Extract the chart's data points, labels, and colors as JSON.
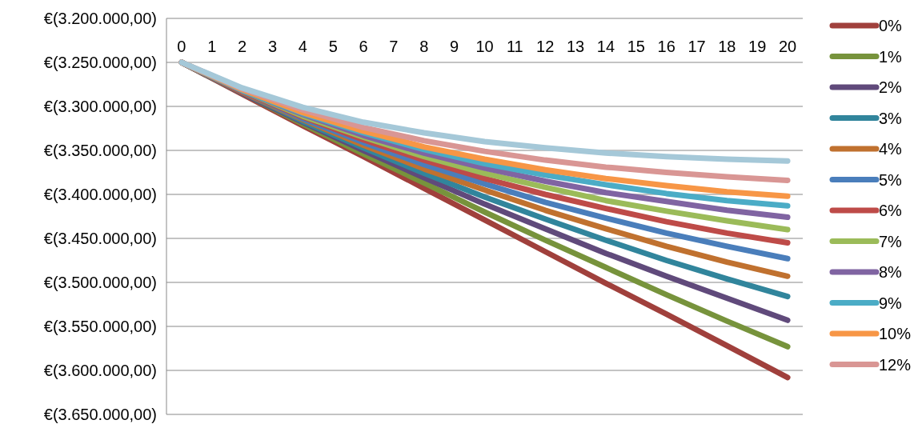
{
  "chart_data": {
    "type": "line",
    "x": [
      0,
      2,
      4,
      6,
      8,
      10,
      12,
      14,
      16,
      18,
      20
    ],
    "xlim": [
      -0.5,
      20.5
    ],
    "xticks": [
      0,
      1,
      2,
      3,
      4,
      5,
      6,
      7,
      8,
      9,
      10,
      11,
      12,
      13,
      14,
      15,
      16,
      17,
      18,
      19,
      20
    ],
    "ylim": [
      -3650000,
      -3200000
    ],
    "yticks": [
      {
        "value": -3200000,
        "label": "€(3.200.000,00)"
      },
      {
        "value": -3250000,
        "label": "€(3.250.000,00)"
      },
      {
        "value": -3300000,
        "label": "€(3.300.000,00)"
      },
      {
        "value": -3350000,
        "label": "€(3.350.000,00)"
      },
      {
        "value": -3400000,
        "label": "€(3.400.000,00)"
      },
      {
        "value": -3450000,
        "label": "€(3.450.000,00)"
      },
      {
        "value": -3500000,
        "label": "€(3.500.000,00)"
      },
      {
        "value": -3550000,
        "label": "€(3.550.000,00)"
      },
      {
        "value": -3600000,
        "label": "€(3.600.000,00)"
      },
      {
        "value": -3650000,
        "label": "€(3.650.000,00)"
      }
    ],
    "grid": "y",
    "legend": "right",
    "marker": "none",
    "line_style": "solid",
    "series": [
      {
        "name": "0%",
        "color": "#a0403c",
        "values": [
          -3250000,
          -3286000,
          -3322000,
          -3357000,
          -3393000,
          -3429000,
          -3465000,
          -3501000,
          -3536000,
          -3572000,
          -3608000
        ]
      },
      {
        "name": "1%",
        "color": "#77933c",
        "values": [
          -3250000,
          -3285000,
          -3320000,
          -3354000,
          -3387000,
          -3420000,
          -3452000,
          -3483000,
          -3514000,
          -3544000,
          -3573000
        ]
      },
      {
        "name": "2%",
        "color": "#604a7b",
        "values": [
          -3250000,
          -3285000,
          -3318000,
          -3350000,
          -3381000,
          -3411000,
          -3439000,
          -3467000,
          -3493000,
          -3518000,
          -3543000
        ]
      },
      {
        "name": "3%",
        "color": "#31859c",
        "values": [
          -3250000,
          -3284000,
          -3317000,
          -3347000,
          -3376000,
          -3403000,
          -3428000,
          -3452000,
          -3475000,
          -3496000,
          -3516000
        ]
      },
      {
        "name": "4%",
        "color": "#c0712f",
        "values": [
          -3250000,
          -3284000,
          -3315000,
          -3344000,
          -3371000,
          -3395000,
          -3418000,
          -3439000,
          -3459000,
          -3477000,
          -3493000
        ]
      },
      {
        "name": "5%",
        "color": "#4a7ebb",
        "values": [
          -3250000,
          -3283000,
          -3314000,
          -3341000,
          -3366000,
          -3388000,
          -3409000,
          -3427000,
          -3444000,
          -3459000,
          -3473000
        ]
      },
      {
        "name": "6%",
        "color": "#be4b48",
        "values": [
          -3250000,
          -3283000,
          -3312000,
          -3338000,
          -3361000,
          -3382000,
          -3400000,
          -3416000,
          -3431000,
          -3444000,
          -3455000
        ]
      },
      {
        "name": "7%",
        "color": "#9bbb59",
        "values": [
          -3250000,
          -3282000,
          -3311000,
          -3335000,
          -3357000,
          -3376000,
          -3392000,
          -3407000,
          -3419000,
          -3430000,
          -3440000
        ]
      },
      {
        "name": "8%",
        "color": "#8064a2",
        "values": [
          -3250000,
          -3282000,
          -3309000,
          -3333000,
          -3353000,
          -3370000,
          -3385000,
          -3398000,
          -3408000,
          -3418000,
          -3426000
        ]
      },
      {
        "name": "9%",
        "color": "#4bacc6",
        "values": [
          -3250000,
          -3282000,
          -3308000,
          -3330000,
          -3349000,
          -3365000,
          -3378000,
          -3389000,
          -3399000,
          -3407000,
          -3413000
        ]
      },
      {
        "name": "10%",
        "color": "#f79646",
        "values": [
          -3250000,
          -3281000,
          -3307000,
          -3328000,
          -3346000,
          -3360000,
          -3372000,
          -3382000,
          -3390000,
          -3397000,
          -3402000
        ]
      },
      {
        "name": "12%",
        "color": "#d99694",
        "values": [
          -3250000,
          -3280000,
          -3304000,
          -3324000,
          -3339000,
          -3351000,
          -3361000,
          -3369000,
          -3375000,
          -3380000,
          -3384000
        ]
      },
      {
        "color": "#a5c8d8",
        "values": [
          -3250000,
          -3279000,
          -3301000,
          -3318000,
          -3330000,
          -3340000,
          -3347000,
          -3353000,
          -3357000,
          -3360000,
          -3362000
        ]
      }
    ]
  }
}
